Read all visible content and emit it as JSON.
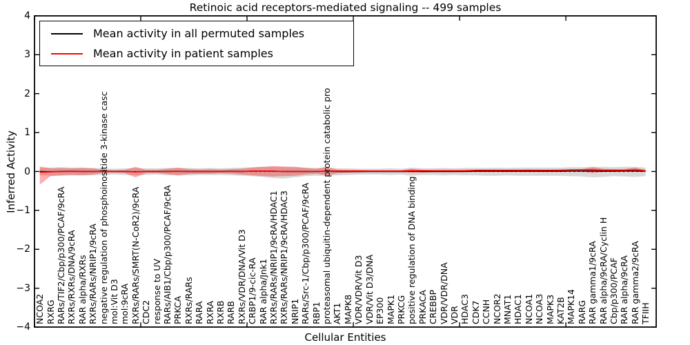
{
  "figure": {
    "title": "Retinoic acid receptors-mediated signaling -- 499 samples",
    "xlabel": "Cellular Entities",
    "ylabel": "Inferred Activity",
    "legend": [
      {
        "label": "Mean activity in all permuted samples",
        "color": "#000000"
      },
      {
        "label": "Mean activity in patient samples",
        "color": "#ff0000"
      }
    ]
  },
  "chart_data": {
    "type": "line",
    "title": "Retinoic acid receptors-mediated signaling -- 499 samples",
    "xlabel": "Cellular Entities",
    "ylabel": "Inferred Activity",
    "ylim": [
      -4,
      4
    ],
    "yticks": [
      4,
      3,
      2,
      1,
      0,
      -1,
      -2,
      -3,
      -4
    ],
    "ytick_labels": [
      "4",
      "3",
      "2",
      "1",
      "0",
      "−1",
      "−2",
      "−3",
      "−4"
    ],
    "xticks": [
      0,
      10,
      20,
      30,
      40,
      50
    ],
    "x_axis_span": 58.5,
    "grid": false,
    "legend_position": "upper left",
    "zero_line": {
      "y": 0,
      "style": "dashed",
      "color": "#000000"
    },
    "categories": [
      "NCOA2",
      "RXRG",
      "RARs/TIF2/Cbp/p300/PCAF/9cRA",
      "RXRs/RXRs/DNA/9cRA",
      "RAR alpha/RXRs",
      "RXRs/RARs/NRIP1/9cRA",
      "negative regulation of phosphoinositide 3-kinase casc",
      "mol:Vit D3",
      "mol:9cRA",
      "RXRs/RARs/SMRT(N-CoR2)/9cRA",
      "CDC2",
      "response to UV",
      "RARs/AIB1/Cbp/p300/PCAF/9cRA",
      "PRKCA",
      "RXRs/RARs",
      "RARA",
      "RXRA",
      "RXRB",
      "RARB",
      "RXRs/VDR/DNA/Vit D3",
      "CRBP1/9-cic-RA",
      "RAR alpha/Jnk1",
      "RXRs/RARs/NRIP1/9cRA/HDAC1",
      "RXRs/RARs/NRIP1/9cRA/HDAC3",
      "NRIP1",
      "RARs/Src-1/Cbp/p300/PCAF/9cRA",
      "RBP1",
      "proteasomal ubiquitin-dependent protein catabolic pro",
      "AKT1",
      "MAPK8",
      "VDR/VDR/Vit D3",
      "VDR/Vit D3/DNA",
      "EP300",
      "MAPK1",
      "PRKCG",
      "positive regulation of DNA binding",
      "PRKACA",
      "CREBBP",
      "VDR/VDR/DNA",
      "VDR",
      "HDAC3",
      "CDK7",
      "CCNH",
      "NCOR2",
      "MNAT1",
      "HDAC1",
      "NCOA1",
      "NCOA3",
      "MAPK3",
      "KAT2B",
      "MAPK14",
      "RARG",
      "RAR gamma1/9cRA",
      "RAR alpha/9cRA/Cyclin H",
      "Cbp/p300/PCAF",
      "RAR alpha/9cRA",
      "RAR gamma2/9cRA",
      "TFIIH"
    ],
    "series": [
      {
        "name": "Mean activity in all permuted samples",
        "kind": "line",
        "color": "#000000",
        "values": [
          0,
          -0.005,
          0,
          0.005,
          0,
          0,
          0.005,
          0,
          0,
          -0.005,
          0,
          0,
          0,
          0.005,
          0,
          0,
          0,
          0,
          0.005,
          0,
          0.01,
          0.01,
          0.005,
          0,
          0,
          0,
          0,
          0.005,
          0,
          0,
          0,
          0,
          0,
          0,
          0,
          0.005,
          0,
          0,
          0,
          0,
          0,
          0.005,
          0.005,
          0.005,
          0.005,
          0.005,
          0.005,
          0.005,
          0.005,
          0.005,
          0.01,
          0.01,
          0.01,
          0.005,
          0.005,
          0.01,
          0.01,
          0.005
        ]
      },
      {
        "name": "Mean activity in patient samples",
        "kind": "line",
        "color": "#ff0000",
        "values": [
          -0.02,
          -0.01,
          0,
          0,
          0,
          0,
          0,
          0,
          0,
          -0.01,
          0,
          0,
          0,
          0,
          0,
          0,
          0,
          0,
          0,
          0,
          0.01,
          0.01,
          0.01,
          0,
          0,
          0,
          0,
          0.01,
          0.01,
          0.01,
          0.01,
          0.01,
          0.01,
          0.01,
          0.01,
          0.02,
          0.02,
          0.02,
          0.02,
          0.02,
          0.02,
          0.03,
          0.03,
          0.03,
          0.03,
          0.03,
          0.03,
          0.03,
          0.03,
          0.03,
          0.04,
          0.04,
          0.04,
          0.03,
          0.03,
          0.03,
          0.04,
          0.02
        ]
      },
      {
        "name": "Permuted samples activity range",
        "kind": "band",
        "color": "#aaaaaa",
        "opacity": 0.45,
        "upper": [
          0.1,
          0.1,
          0.11,
          0.1,
          0.1,
          0.09,
          0.08,
          0.07,
          0.08,
          0.09,
          0.08,
          0.08,
          0.09,
          0.09,
          0.09,
          0.08,
          0.09,
          0.08,
          0.09,
          0.1,
          0.11,
          0.12,
          0.12,
          0.11,
          0.11,
          0.1,
          0.09,
          0.1,
          0.08,
          0.08,
          0.07,
          0.07,
          0.07,
          0.08,
          0.07,
          0.1,
          0.08,
          0.08,
          0.09,
          0.08,
          0.09,
          0.09,
          0.09,
          0.1,
          0.09,
          0.1,
          0.1,
          0.1,
          0.1,
          0.1,
          0.11,
          0.11,
          0.12,
          0.12,
          0.11,
          0.12,
          0.12,
          0.1
        ],
        "lower": [
          -0.1,
          -0.11,
          -0.11,
          -0.1,
          -0.1,
          -0.1,
          -0.09,
          -0.08,
          -0.09,
          -0.1,
          -0.09,
          -0.08,
          -0.1,
          -0.1,
          -0.1,
          -0.09,
          -0.09,
          -0.09,
          -0.1,
          -0.11,
          -0.12,
          -0.14,
          -0.17,
          -0.18,
          -0.15,
          -0.12,
          -0.11,
          -0.11,
          -0.1,
          -0.09,
          -0.08,
          -0.08,
          -0.08,
          -0.09,
          -0.08,
          -0.11,
          -0.09,
          -0.09,
          -0.1,
          -0.09,
          -0.1,
          -0.1,
          -0.11,
          -0.11,
          -0.1,
          -0.11,
          -0.11,
          -0.11,
          -0.11,
          -0.11,
          -0.12,
          -0.13,
          -0.15,
          -0.14,
          -0.12,
          -0.13,
          -0.14,
          -0.12
        ]
      },
      {
        "name": "Patient samples activity range",
        "kind": "band",
        "color": "#ff0000",
        "opacity": 0.32,
        "upper": [
          0.13,
          0.08,
          0.09,
          0.08,
          0.09,
          0.08,
          0.04,
          0.03,
          0.04,
          0.12,
          0.04,
          0.04,
          0.07,
          0.1,
          0.06,
          0.05,
          0.06,
          0.05,
          0.06,
          0.07,
          0.1,
          0.12,
          0.14,
          0.13,
          0.12,
          0.09,
          0.07,
          0.12,
          0.05,
          0.04,
          0.04,
          0.03,
          0.03,
          0.03,
          0.03,
          0.07,
          0.04,
          0.03,
          0.03,
          0.03,
          0.04,
          0.04,
          0.04,
          0.04,
          0.04,
          0.04,
          0.05,
          0.04,
          0.04,
          0.05,
          0.05,
          0.06,
          0.11,
          0.07,
          0.06,
          0.06,
          0.1,
          0.04
        ],
        "lower": [
          -0.34,
          -0.12,
          -0.1,
          -0.09,
          -0.1,
          -0.08,
          -0.04,
          -0.03,
          -0.04,
          -0.15,
          -0.04,
          -0.04,
          -0.07,
          -0.1,
          -0.07,
          -0.06,
          -0.06,
          -0.05,
          -0.06,
          -0.08,
          -0.1,
          -0.12,
          -0.13,
          -0.12,
          -0.11,
          -0.08,
          -0.06,
          -0.1,
          -0.05,
          -0.04,
          -0.03,
          -0.02,
          -0.02,
          -0.02,
          -0.02,
          -0.04,
          -0.03,
          -0.02,
          -0.02,
          -0.02,
          -0.01,
          -0.01,
          -0.01,
          -0.01,
          -0.01,
          -0.01,
          -0.01,
          -0.01,
          -0.01,
          -0.01,
          0.0,
          0.0,
          -0.04,
          -0.01,
          0.0,
          0.0,
          0.01,
          0.0
        ]
      }
    ]
  },
  "colors": {
    "frame": "#000000",
    "background": "#ffffff",
    "permuted_line": "#000000",
    "patient_line": "#ff0000",
    "permuted_band": "#aaaaaa",
    "patient_band": "#ff0000"
  }
}
